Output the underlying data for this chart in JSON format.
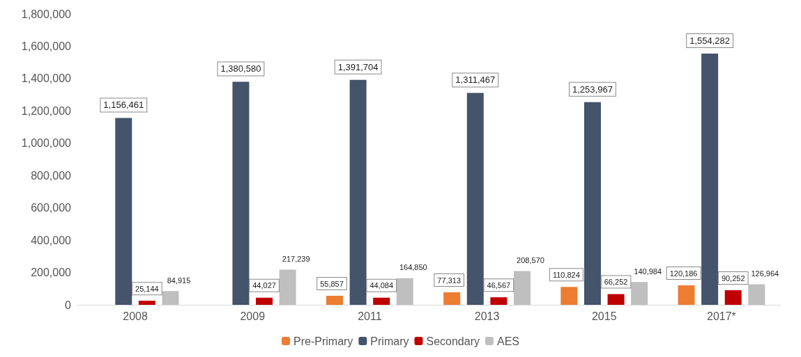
{
  "chart_data": {
    "type": "bar",
    "categories": [
      "2008",
      "2009",
      "2011",
      "2013",
      "2015",
      "2017*"
    ],
    "series": [
      {
        "name": "Pre-Primary",
        "color": "#ed7d31",
        "values": [
          null,
          null,
          55857,
          77313,
          110824,
          120186
        ],
        "value_labels": [
          null,
          null,
          "55,857",
          "77,313",
          "110,824",
          "120,186"
        ]
      },
      {
        "name": "Primary",
        "color": "#44546a",
        "values": [
          1156461,
          1380580,
          1391704,
          1311467,
          1253967,
          1554282
        ],
        "value_labels": [
          "1,156,461",
          "1,380,580",
          "1,391,704",
          "1,311,467",
          "1,253,967",
          "1,554,282"
        ]
      },
      {
        "name": "Secondary",
        "color": "#c00000",
        "values": [
          25144,
          44027,
          44084,
          46567,
          66252,
          90252
        ],
        "value_labels": [
          "25,144",
          "44,027",
          "44,084",
          "46,567",
          "66,252",
          "90,252"
        ]
      },
      {
        "name": "AES",
        "color": "#bfbfbf",
        "values": [
          84915,
          217239,
          164850,
          208570,
          140984,
          126964
        ],
        "value_labels": [
          "84,915",
          "217,239",
          "164,850",
          "208,570",
          "140,984",
          "126,964"
        ]
      }
    ],
    "ylim": [
      0,
      1800000
    ],
    "yticks": [
      {
        "value": 0,
        "label": "0"
      },
      {
        "value": 200000,
        "label": "200,000"
      },
      {
        "value": 400000,
        "label": "400,000"
      },
      {
        "value": 600000,
        "label": "600,000"
      },
      {
        "value": 800000,
        "label": "800,000"
      },
      {
        "value": 1000000,
        "label": "1,000,000"
      },
      {
        "value": 1200000,
        "label": "1,200,000"
      },
      {
        "value": 1400000,
        "label": "1,400,000"
      },
      {
        "value": 1600000,
        "label": "1,600,000"
      },
      {
        "value": 1800000,
        "label": "1,800,000"
      }
    ],
    "grid": false,
    "legend": "bottom"
  }
}
